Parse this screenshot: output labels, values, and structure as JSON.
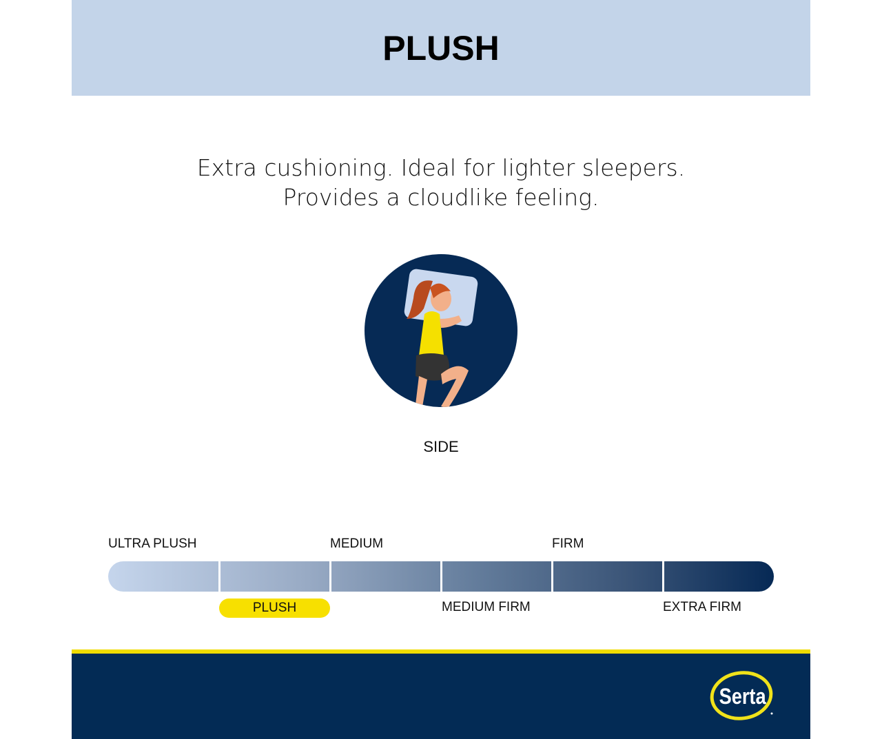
{
  "header": {
    "title": "PLUSH"
  },
  "description": {
    "line1": "Extra cushioning. Ideal for lighter sleepers.",
    "line2": "Provides a cloudlike feeling."
  },
  "sleep_position": {
    "label": "SIDE",
    "icon": "side-sleeper-illustration"
  },
  "firmness_scale": {
    "top_labels": [
      "ULTRA PLUSH",
      "MEDIUM",
      "FIRM"
    ],
    "bottom_labels": [
      "PLUSH",
      "MEDIUM FIRM",
      "EXTRA FIRM"
    ],
    "levels": [
      "ULTRA PLUSH",
      "PLUSH",
      "MEDIUM",
      "MEDIUM FIRM",
      "FIRM",
      "EXTRA FIRM"
    ],
    "selected": "PLUSH",
    "selected_index": 1,
    "highlight_color": "#f7e000"
  },
  "footer": {
    "brand": "Serta",
    "brand_color": "#032b55",
    "accent_color": "#f0dc00"
  }
}
